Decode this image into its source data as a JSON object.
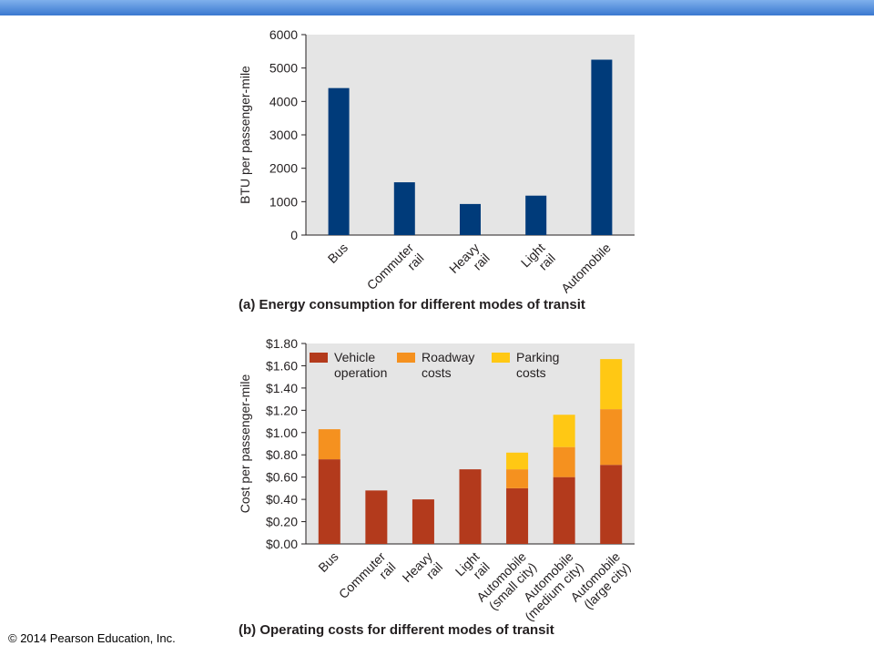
{
  "copyright": "© 2014 Pearson Education, Inc.",
  "colors": {
    "frame": "#e5e5e5",
    "bar_a": "#003b7a",
    "vehicle": "#b33a1c",
    "roadway": "#f5911f",
    "parking": "#ffc814"
  },
  "chart_data": [
    {
      "type": "bar",
      "caption": "(a) Energy consumption for different modes of transit",
      "xlabel": "",
      "ylabel": "BTU per passenger-mile",
      "ylim": [
        0,
        6000
      ],
      "yticks": [
        "6000",
        "5000",
        "4000",
        "3000",
        "2000",
        "1000",
        "0"
      ],
      "categories": [
        [
          "Bus"
        ],
        [
          "Commuter",
          "rail"
        ],
        [
          "Heavy",
          "rail"
        ],
        [
          "Light",
          "rail"
        ],
        [
          "Automobile"
        ]
      ],
      "values": [
        4400,
        1580,
        930,
        1180,
        5250
      ]
    },
    {
      "type": "bar",
      "stacked": true,
      "caption": "(b) Operating costs for different modes of transit",
      "xlabel": "",
      "ylabel": "Cost per passenger-mile",
      "ylim": [
        0,
        1.8
      ],
      "yticks": [
        "$1.80",
        "$1.60",
        "$1.40",
        "$1.20",
        "$1.00",
        "$0.80",
        "$0.60",
        "$0.40",
        "$0.20",
        "$0.00"
      ],
      "categories": [
        [
          "Bus"
        ],
        [
          "Commuter",
          "rail"
        ],
        [
          "Heavy",
          "rail"
        ],
        [
          "Light",
          "rail"
        ],
        [
          "Automobile",
          "(small city)"
        ],
        [
          "Automobile",
          "(medium city)"
        ],
        [
          "Automobile",
          "(large city)"
        ]
      ],
      "legend": [
        [
          "Vehicle",
          "operation"
        ],
        [
          "Roadway",
          "costs"
        ],
        [
          "Parking",
          "costs"
        ]
      ],
      "series": [
        {
          "name": "Vehicle operation",
          "values": [
            0.76,
            0.48,
            0.4,
            0.67,
            0.5,
            0.6,
            0.71
          ]
        },
        {
          "name": "Roadway costs",
          "values": [
            0.27,
            0,
            0,
            0,
            0.17,
            0.27,
            0.5
          ]
        },
        {
          "name": "Parking costs",
          "values": [
            0,
            0,
            0,
            0,
            0.15,
            0.29,
            0.45
          ]
        }
      ]
    }
  ]
}
